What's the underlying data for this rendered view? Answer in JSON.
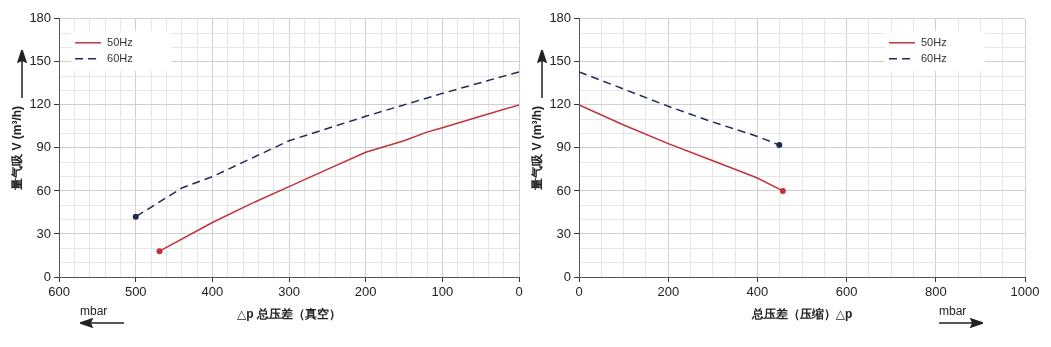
{
  "chart_data": [
    {
      "type": "line",
      "xlabel": "△p 总压差（真空）",
      "ylabel": "量气吸 V (m³/h)",
      "annotations": [
        "mbar"
      ],
      "xlim": [
        600,
        0
      ],
      "xticks": [
        {
          "value": 0,
          "label": "0"
        },
        {
          "value": 20,
          "label": null
        },
        {
          "value": 40,
          "label": null
        },
        {
          "value": 60,
          "label": null
        },
        {
          "value": 80,
          "label": null
        },
        {
          "value": 100,
          "label": "100"
        },
        {
          "value": 120,
          "label": null
        },
        {
          "value": 140,
          "label": null
        },
        {
          "value": 160,
          "label": null
        },
        {
          "value": 180,
          "label": null
        },
        {
          "value": 200,
          "label": "200"
        },
        {
          "value": 220,
          "label": null
        },
        {
          "value": 240,
          "label": null
        },
        {
          "value": 260,
          "label": null
        },
        {
          "value": 280,
          "label": null
        },
        {
          "value": 300,
          "label": "300"
        },
        {
          "value": 320,
          "label": null
        },
        {
          "value": 340,
          "label": null
        },
        {
          "value": 360,
          "label": null
        },
        {
          "value": 380,
          "label": null
        },
        {
          "value": 400,
          "label": "400"
        },
        {
          "value": 420,
          "label": null
        },
        {
          "value": 440,
          "label": null
        },
        {
          "value": 460,
          "label": null
        },
        {
          "value": 480,
          "label": null
        },
        {
          "value": 500,
          "label": "500"
        },
        {
          "value": 520,
          "label": null
        },
        {
          "value": 540,
          "label": null
        },
        {
          "value": 560,
          "label": null
        },
        {
          "value": 580,
          "label": null
        },
        {
          "value": 600,
          "label": "600"
        }
      ],
      "ylim": [
        0,
        180
      ],
      "yticks": [
        {
          "value": 0,
          "label": "0"
        },
        {
          "value": 10,
          "label": null
        },
        {
          "value": 20,
          "label": null
        },
        {
          "value": 30,
          "label": "30"
        },
        {
          "value": 40,
          "label": null
        },
        {
          "value": 50,
          "label": null
        },
        {
          "value": 60,
          "label": "60"
        },
        {
          "value": 70,
          "label": null
        },
        {
          "value": 80,
          "label": null
        },
        {
          "value": 90,
          "label": "90"
        },
        {
          "value": 100,
          "label": null
        },
        {
          "value": 110,
          "label": null
        },
        {
          "value": 120,
          "label": "120"
        },
        {
          "value": 130,
          "label": null
        },
        {
          "value": 140,
          "label": null
        },
        {
          "value": 150,
          "label": "150"
        },
        {
          "value": 160,
          "label": null
        },
        {
          "value": 170,
          "label": null
        },
        {
          "value": 180,
          "label": "180"
        }
      ],
      "grid": true,
      "legend": "top left",
      "series": [
        {
          "name": "50Hz",
          "color": "#c0333a",
          "line_style": "solid",
          "x": [
            0,
            50,
            100,
            120,
            150,
            200,
            250,
            300,
            350,
            400,
            469
          ],
          "values": [
            120,
            112,
            104,
            101,
            95,
            87,
            75,
            63,
            51,
            38,
            18
          ]
        },
        {
          "name": "60Hz",
          "color": "#1f2a55",
          "line_style": "dashed",
          "x": [
            0,
            100,
            200,
            300,
            400,
            440,
            500
          ],
          "values": [
            143,
            128,
            112,
            95,
            70,
            62,
            42
          ]
        },
        {
          "type": "scatter",
          "color": "#c0333a",
          "marker": "circle",
          "x": [
            469
          ],
          "values": [
            18
          ]
        },
        {
          "type": "scatter",
          "color": "#1f2a55",
          "marker": "circle",
          "x": [
            500
          ],
          "values": [
            42
          ]
        }
      ]
    },
    {
      "type": "line",
      "xlabel": "总压差（压缩）△p",
      "ylabel": "量气吸 V (m³/h)",
      "annotations": [
        "mbar"
      ],
      "xlim": [
        0,
        1000
      ],
      "xticks": [
        {
          "value": 0,
          "label": "0"
        },
        {
          "value": 50,
          "label": null
        },
        {
          "value": 100,
          "label": null
        },
        {
          "value": 150,
          "label": null
        },
        {
          "value": 200,
          "label": "200"
        },
        {
          "value": 250,
          "label": null
        },
        {
          "value": 300,
          "label": null
        },
        {
          "value": 350,
          "label": null
        },
        {
          "value": 400,
          "label": "400"
        },
        {
          "value": 450,
          "label": null
        },
        {
          "value": 500,
          "label": null
        },
        {
          "value": 550,
          "label": null
        },
        {
          "value": 600,
          "label": "600"
        },
        {
          "value": 650,
          "label": null
        },
        {
          "value": 700,
          "label": null
        },
        {
          "value": 750,
          "label": null
        },
        {
          "value": 800,
          "label": "800"
        },
        {
          "value": 850,
          "label": null
        },
        {
          "value": 900,
          "label": null
        },
        {
          "value": 950,
          "label": null
        },
        {
          "value": 1000,
          "label": "1000"
        }
      ],
      "ylim": [
        0,
        180
      ],
      "yticks": [
        {
          "value": 0,
          "label": "0"
        },
        {
          "value": 10,
          "label": null
        },
        {
          "value": 20,
          "label": null
        },
        {
          "value": 30,
          "label": "30"
        },
        {
          "value": 40,
          "label": null
        },
        {
          "value": 50,
          "label": null
        },
        {
          "value": 60,
          "label": "60"
        },
        {
          "value": 70,
          "label": null
        },
        {
          "value": 80,
          "label": null
        },
        {
          "value": 90,
          "label": "90"
        },
        {
          "value": 100,
          "label": null
        },
        {
          "value": 110,
          "label": null
        },
        {
          "value": 120,
          "label": "120"
        },
        {
          "value": 130,
          "label": null
        },
        {
          "value": 140,
          "label": null
        },
        {
          "value": 150,
          "label": "150"
        },
        {
          "value": 160,
          "label": null
        },
        {
          "value": 170,
          "label": null
        },
        {
          "value": 180,
          "label": "180"
        }
      ],
      "grid": true,
      "legend": "top right",
      "series": [
        {
          "name": "50Hz",
          "color": "#c0333a",
          "line_style": "solid",
          "x": [
            0,
            100,
            200,
            300,
            400,
            457
          ],
          "values": [
            120,
            106,
            93,
            81,
            69,
            60
          ]
        },
        {
          "name": "60Hz",
          "color": "#1f2a55",
          "line_style": "dashed",
          "x": [
            0,
            100,
            200,
            300,
            400,
            449
          ],
          "values": [
            143,
            131,
            119,
            108,
            98,
            92
          ]
        },
        {
          "type": "scatter",
          "color": "#c0333a",
          "marker": "circle",
          "x": [
            457
          ],
          "values": [
            60
          ]
        },
        {
          "type": "scatter",
          "color": "#1f2a55",
          "marker": "circle",
          "x": [
            449
          ],
          "values": [
            92
          ]
        }
      ]
    }
  ]
}
